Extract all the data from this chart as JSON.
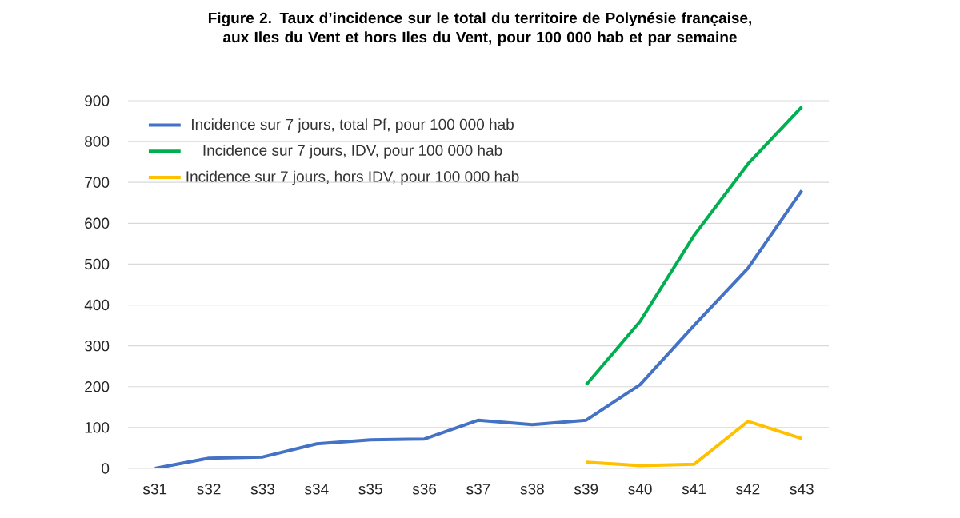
{
  "chart_data": {
    "type": "line",
    "title": "Figure 2. Taux d’incidence sur le total du territoire de Polynésie française, aux Iles du Vent et hors Iles du Vent, pour 100 000 hab et par semaine",
    "categories": [
      "s31",
      "s32",
      "s33",
      "s34",
      "s35",
      "s36",
      "s37",
      "s38",
      "s39",
      "s40",
      "s41",
      "s42",
      "s43"
    ],
    "series": [
      {
        "name": "Incidence sur 7 jours, total Pf, pour 100 000 hab",
        "color": "#4472c4",
        "values": [
          0,
          25,
          28,
          60,
          70,
          72,
          118,
          107,
          118,
          205,
          350,
          490,
          680
        ]
      },
      {
        "name": "Incidence sur 7 jours, IDV, pour 100 000 hab",
        "color": "#00b050",
        "values": [
          null,
          null,
          null,
          null,
          null,
          null,
          null,
          null,
          205,
          360,
          570,
          745,
          885
        ]
      },
      {
        "name": "Incidence sur 7 jours, hors IDV, pour 100 000 hab",
        "color": "#ffc000",
        "values": [
          null,
          null,
          null,
          null,
          null,
          null,
          null,
          null,
          15,
          7,
          10,
          115,
          73
        ]
      }
    ],
    "ylim": [
      0,
      900
    ],
    "yticks": [
      0,
      100,
      200,
      300,
      400,
      500,
      600,
      700,
      800,
      900
    ],
    "grid": "y",
    "legend": "top left",
    "marker": "none",
    "line_style": "solid"
  }
}
